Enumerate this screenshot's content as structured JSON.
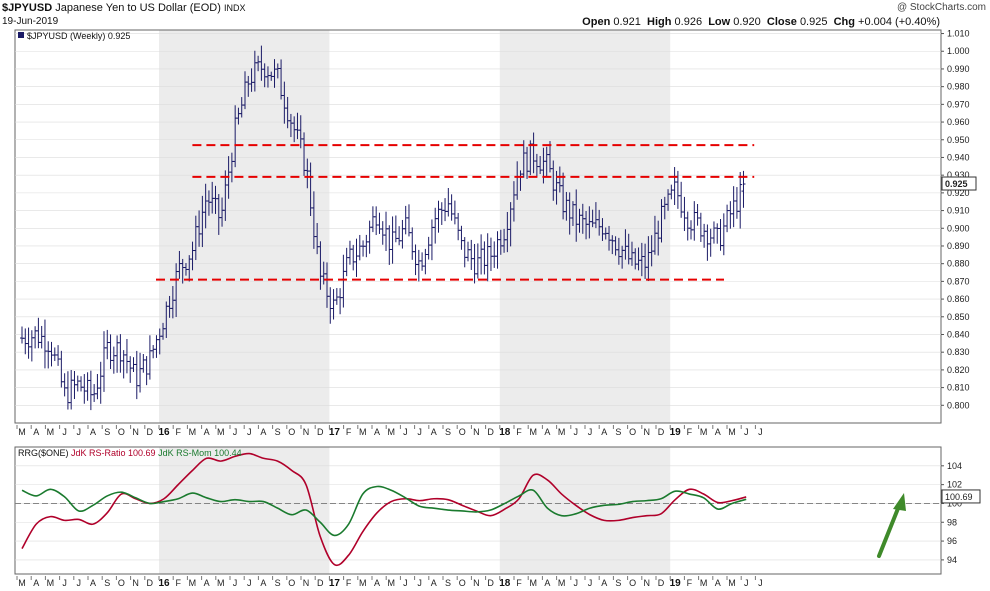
{
  "header": {
    "symbol": "$JPYUSD",
    "name": "Japanese Yen to US Dollar (EOD)",
    "exchange": "INDX",
    "date": "19-Jun-2019",
    "watermark": "@ StockCharts.com",
    "open_label": "Open",
    "open": "0.921",
    "high_label": "High",
    "high": "0.926",
    "low_label": "Low",
    "low": "0.920",
    "close_label": "Close",
    "close": "0.925",
    "chg_label": "Chg",
    "chg": "+0.004 (+0.40%)"
  },
  "colors": {
    "price": "#1a1a66",
    "support_resistance": "#e60000",
    "rs_ratio": "#b0002a",
    "rs_mom": "#1a7a2e",
    "arrow": "#3f8a2a",
    "shade": "#ececec"
  },
  "chart_data": [
    {
      "type": "bar",
      "subtype": "ohlc-weekly",
      "legend": "$JPYUSD (Weekly) 0.925",
      "last_value": "0.925",
      "ylim": [
        0.79,
        1.012
      ],
      "y_ticks": [
        "1.010",
        "1.000",
        "0.990",
        "0.980",
        "0.970",
        "0.960",
        "0.950",
        "0.940",
        "0.930",
        "0.920",
        "0.910",
        "0.900",
        "0.890",
        "0.880",
        "0.870",
        "0.860",
        "0.850",
        "0.840",
        "0.830",
        "0.820",
        "0.810",
        "0.800"
      ],
      "x_month_labels": [
        "M",
        "A",
        "M",
        "J",
        "J",
        "A",
        "S",
        "O",
        "N",
        "D",
        "16",
        "F",
        "M",
        "A",
        "M",
        "J",
        "J",
        "A",
        "S",
        "O",
        "N",
        "D",
        "17",
        "F",
        "M",
        "A",
        "M",
        "J",
        "J",
        "A",
        "S",
        "O",
        "N",
        "D",
        "18",
        "F",
        "M",
        "A",
        "M",
        "J",
        "J",
        "A",
        "S",
        "O",
        "N",
        "D",
        "19",
        "F",
        "M",
        "A",
        "M",
        "J",
        "J"
      ],
      "horizontal_lines": [
        {
          "level": 0.947,
          "from": "2016-03",
          "to": "2019-06"
        },
        {
          "level": 0.929,
          "from": "2016-03",
          "to": "2019-06"
        },
        {
          "level": 0.871,
          "from": "2016-01",
          "to": "2019-05"
        }
      ],
      "close_path": [
        [
          "2015-03",
          0.838
        ],
        [
          "2015-04",
          0.84
        ],
        [
          "2015-05",
          0.835
        ],
        [
          "2015-06",
          0.806
        ],
        [
          "2015-07",
          0.812
        ],
        [
          "2015-08",
          0.805
        ],
        [
          "2015-09",
          0.832
        ],
        [
          "2015-10",
          0.832
        ],
        [
          "2015-11",
          0.815
        ],
        [
          "2015-12",
          0.826
        ],
        [
          "2016-01",
          0.85
        ],
        [
          "2016-02",
          0.876
        ],
        [
          "2016-03",
          0.888
        ],
        [
          "2016-04",
          0.918
        ],
        [
          "2016-05",
          0.905
        ],
        [
          "2016-06",
          0.955
        ],
        [
          "2016-07",
          0.985
        ],
        [
          "2016-08",
          0.992
        ],
        [
          "2016-09",
          0.985
        ],
        [
          "2016-10",
          0.96
        ],
        [
          "2016-11",
          0.935
        ],
        [
          "2016-12",
          0.872
        ],
        [
          "2017-01",
          0.855
        ],
        [
          "2017-02",
          0.882
        ],
        [
          "2017-03",
          0.89
        ],
        [
          "2017-04",
          0.91
        ],
        [
          "2017-05",
          0.89
        ],
        [
          "2017-06",
          0.9
        ],
        [
          "2017-07",
          0.88
        ],
        [
          "2017-08",
          0.905
        ],
        [
          "2017-09",
          0.915
        ],
        [
          "2017-10",
          0.888
        ],
        [
          "2017-11",
          0.88
        ],
        [
          "2017-12",
          0.885
        ],
        [
          "2018-01",
          0.9
        ],
        [
          "2018-02",
          0.935
        ],
        [
          "2018-03",
          0.942
        ],
        [
          "2018-04",
          0.935
        ],
        [
          "2018-05",
          0.915
        ],
        [
          "2018-06",
          0.905
        ],
        [
          "2018-07",
          0.9
        ],
        [
          "2018-08",
          0.902
        ],
        [
          "2018-09",
          0.89
        ],
        [
          "2018-10",
          0.88
        ],
        [
          "2018-11",
          0.88
        ],
        [
          "2018-12",
          0.905
        ],
        [
          "2019-01",
          0.922
        ],
        [
          "2019-02",
          0.905
        ],
        [
          "2019-03",
          0.9
        ],
        [
          "2019-04",
          0.893
        ],
        [
          "2019-05",
          0.91
        ],
        [
          "2019-06",
          0.925
        ]
      ]
    },
    {
      "type": "line",
      "legend_prefix": "RRG($ONE)",
      "ylim": [
        92.5,
        106
      ],
      "y_ticks": [
        "104",
        "102",
        "100",
        "98",
        "96",
        "94"
      ],
      "reference_line": 100,
      "last_value": "100.69",
      "x_month_labels": [
        "M",
        "A",
        "M",
        "J",
        "J",
        "A",
        "S",
        "O",
        "N",
        "D",
        "16",
        "F",
        "M",
        "A",
        "M",
        "J",
        "J",
        "A",
        "S",
        "O",
        "N",
        "D",
        "17",
        "F",
        "M",
        "A",
        "M",
        "J",
        "J",
        "A",
        "S",
        "O",
        "N",
        "D",
        "18",
        "F",
        "M",
        "A",
        "M",
        "J",
        "J",
        "A",
        "S",
        "O",
        "N",
        "D",
        "19",
        "F",
        "M",
        "A",
        "M",
        "J",
        "J"
      ],
      "series": [
        {
          "name": "JdK RS-Ratio 100.69",
          "values": [
            [
              "2015-03",
              95.2
            ],
            [
              "2015-04",
              97.8
            ],
            [
              "2015-05",
              98.6
            ],
            [
              "2015-06",
              98.2
            ],
            [
              "2015-07",
              98.3
            ],
            [
              "2015-08",
              97.8
            ],
            [
              "2015-09",
              99.0
            ],
            [
              "2015-10",
              101.0
            ],
            [
              "2015-11",
              100.5
            ],
            [
              "2015-12",
              100.0
            ],
            [
              "2016-01",
              100.5
            ],
            [
              "2016-02",
              102.0
            ],
            [
              "2016-03",
              103.5
            ],
            [
              "2016-04",
              104.8
            ],
            [
              "2016-05",
              104.5
            ],
            [
              "2016-06",
              105.0
            ],
            [
              "2016-07",
              105.3
            ],
            [
              "2016-08",
              104.8
            ],
            [
              "2016-09",
              104.5
            ],
            [
              "2016-10",
              103.5
            ],
            [
              "2016-11",
              102.0
            ],
            [
              "2016-12",
              96.5
            ],
            [
              "2017-01",
              93.5
            ],
            [
              "2017-02",
              94.5
            ],
            [
              "2017-03",
              97.0
            ],
            [
              "2017-04",
              99.0
            ],
            [
              "2017-05",
              100.2
            ],
            [
              "2017-06",
              100.5
            ],
            [
              "2017-07",
              100.3
            ],
            [
              "2017-08",
              100.5
            ],
            [
              "2017-09",
              100.4
            ],
            [
              "2017-10",
              99.8
            ],
            [
              "2017-11",
              99.2
            ],
            [
              "2017-12",
              98.7
            ],
            [
              "2018-01",
              99.4
            ],
            [
              "2018-02",
              100.5
            ],
            [
              "2018-03",
              103.0
            ],
            [
              "2018-04",
              102.5
            ],
            [
              "2018-05",
              101.0
            ],
            [
              "2018-06",
              99.8
            ],
            [
              "2018-07",
              98.8
            ],
            [
              "2018-08",
              98.2
            ],
            [
              "2018-09",
              98.2
            ],
            [
              "2018-10",
              98.5
            ],
            [
              "2018-11",
              98.7
            ],
            [
              "2018-12",
              98.9
            ],
            [
              "2019-01",
              100.4
            ],
            [
              "2019-02",
              101.5
            ],
            [
              "2019-03",
              101.0
            ],
            [
              "2019-04",
              100.1
            ],
            [
              "2019-05",
              100.3
            ],
            [
              "2019-06",
              100.69
            ]
          ]
        },
        {
          "name": "JdK RS-Mom 100.44",
          "values": [
            [
              "2015-03",
              101.4
            ],
            [
              "2015-04",
              100.8
            ],
            [
              "2015-05",
              101.5
            ],
            [
              "2015-06",
              100.7
            ],
            [
              "2015-07",
              99.2
            ],
            [
              "2015-08",
              99.8
            ],
            [
              "2015-09",
              100.8
            ],
            [
              "2015-10",
              101.2
            ],
            [
              "2015-11",
              100.6
            ],
            [
              "2015-12",
              100.0
            ],
            [
              "2016-01",
              100.2
            ],
            [
              "2016-02",
              100.5
            ],
            [
              "2016-03",
              101.1
            ],
            [
              "2016-04",
              100.6
            ],
            [
              "2016-05",
              100.2
            ],
            [
              "2016-06",
              100.4
            ],
            [
              "2016-07",
              100.2
            ],
            [
              "2016-08",
              100.2
            ],
            [
              "2016-09",
              99.5
            ],
            [
              "2016-10",
              98.8
            ],
            [
              "2016-11",
              99.3
            ],
            [
              "2016-12",
              98.0
            ],
            [
              "2017-01",
              96.6
            ],
            [
              "2017-02",
              97.8
            ],
            [
              "2017-03",
              101.0
            ],
            [
              "2017-04",
              101.8
            ],
            [
              "2017-05",
              101.4
            ],
            [
              "2017-06",
              100.6
            ],
            [
              "2017-07",
              99.7
            ],
            [
              "2017-08",
              99.5
            ],
            [
              "2017-09",
              99.3
            ],
            [
              "2017-10",
              99.2
            ],
            [
              "2017-11",
              99.1
            ],
            [
              "2017-12",
              99.3
            ],
            [
              "2018-01",
              100.0
            ],
            [
              "2018-02",
              100.8
            ],
            [
              "2018-03",
              101.4
            ],
            [
              "2018-04",
              99.5
            ],
            [
              "2018-05",
              98.7
            ],
            [
              "2018-06",
              98.9
            ],
            [
              "2018-07",
              99.5
            ],
            [
              "2018-08",
              99.8
            ],
            [
              "2018-09",
              99.9
            ],
            [
              "2018-10",
              100.2
            ],
            [
              "2018-11",
              100.3
            ],
            [
              "2018-12",
              100.5
            ],
            [
              "2019-01",
              101.3
            ],
            [
              "2019-02",
              101.0
            ],
            [
              "2019-03",
              100.6
            ],
            [
              "2019-04",
              99.4
            ],
            [
              "2019-05",
              100.0
            ],
            [
              "2019-06",
              100.44
            ]
          ]
        }
      ]
    }
  ]
}
